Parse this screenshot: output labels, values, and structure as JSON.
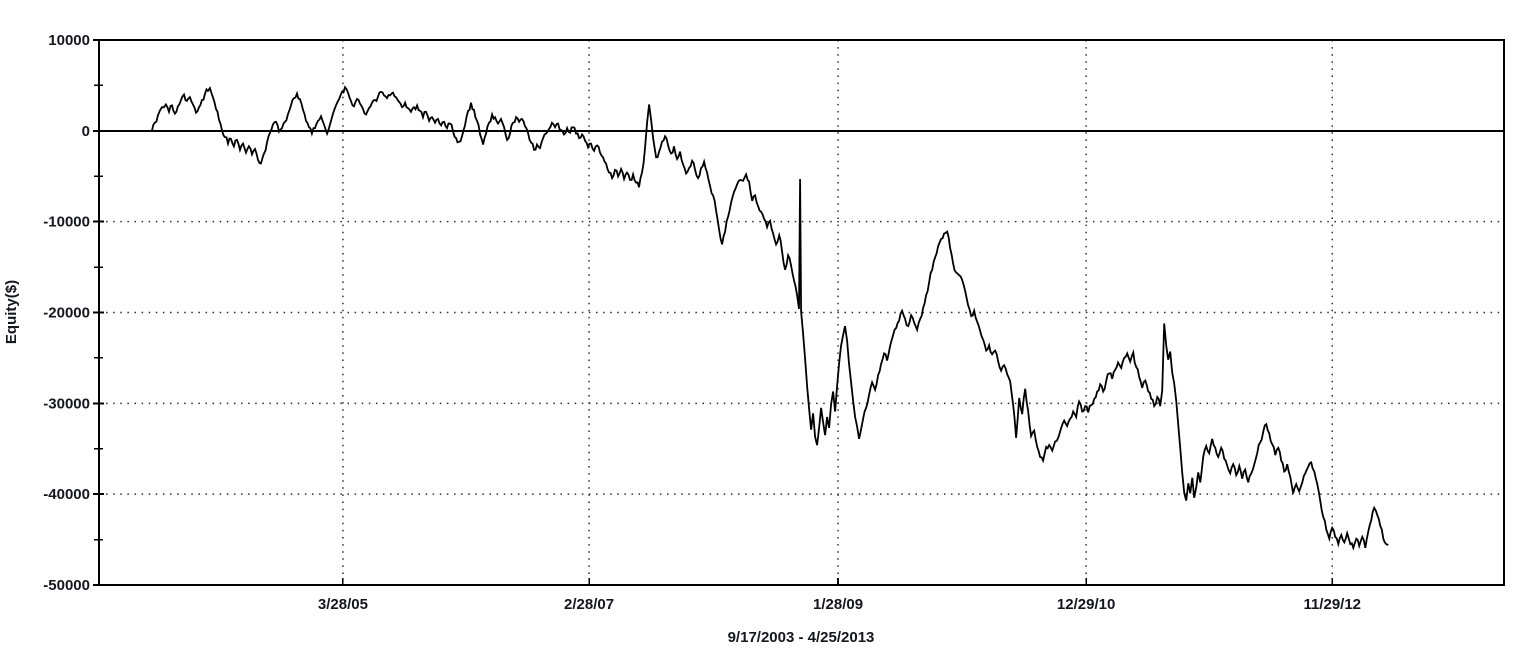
{
  "window": {
    "background": "#ffffff"
  },
  "chart_data": {
    "type": "line",
    "title": "",
    "ylabel": "Equity($)",
    "caption": "9/17/2003 - 4/25/2013",
    "x_axis": {
      "start_date": "9/17/2003",
      "end_date": "4/25/2013",
      "unit": "years_since_start",
      "xlim": [
        -0.41,
        10.47
      ],
      "ticks": [
        {
          "label": "3/28/05",
          "t": 1.479
        },
        {
          "label": "2/28/07",
          "t": 3.385
        },
        {
          "label": "1/28/09",
          "t": 5.313
        },
        {
          "label": "12/29/10",
          "t": 7.234
        },
        {
          "label": "11/29/12",
          "t": 9.14
        }
      ]
    },
    "y_axis": {
      "ylim": [
        -50000,
        10000
      ],
      "major_ticks": [
        {
          "label": "10000",
          "v": 10000
        },
        {
          "label": "0",
          "v": 0
        },
        {
          "label": "-10000",
          "v": -10000
        },
        {
          "label": "-20000",
          "v": -20000
        },
        {
          "label": "-30000",
          "v": -30000
        },
        {
          "label": "-40000",
          "v": -40000
        },
        {
          "label": "-50000",
          "v": -50000
        }
      ],
      "minor_ticks": [
        5000,
        -5000,
        -15000,
        -25000,
        -35000,
        -45000
      ]
    },
    "grid": {
      "h_lines": [
        -10000,
        -20000,
        -30000,
        -40000
      ],
      "v_lines_at_x_ticks": true,
      "style": "dotted"
    },
    "zero_line": 0,
    "style": {
      "line_color": "#000000",
      "grid_color": "#2e2e2e",
      "frame_color": "#000000",
      "text_color": "#16161e",
      "noise_amplitude_usd": 650,
      "noise_seed": 20130425
    },
    "series": [
      {
        "name": "equity-curve",
        "color": "#000000",
        "t": [
          0,
          0.023,
          0.046,
          0.077,
          0.108,
          0.132,
          0.155,
          0.178,
          0.201,
          0.225,
          0.248,
          0.271,
          0.294,
          0.318,
          0.341,
          0.364,
          0.387,
          0.411,
          0.434,
          0.449,
          0.472,
          0.496,
          0.519,
          0.542,
          0.565,
          0.589,
          0.612,
          0.635,
          0.658,
          0.682,
          0.705,
          0.728,
          0.751,
          0.775,
          0.798,
          0.821,
          0.844,
          0.868,
          0.891,
          0.914,
          0.937,
          0.961,
          0.984,
          1.007,
          1.03,
          1.053,
          1.077,
          1.1,
          1.123,
          1.146,
          1.17,
          1.193,
          1.216,
          1.239,
          1.263,
          1.286,
          1.309,
          1.332,
          1.356,
          1.379,
          1.402,
          1.425,
          1.449,
          1.472,
          1.495,
          1.518,
          1.541,
          1.565,
          1.588,
          1.611,
          1.634,
          1.658,
          1.681,
          1.704,
          1.727,
          1.751,
          1.774,
          1.797,
          1.82,
          1.844,
          1.867,
          1.89,
          1.913,
          1.937,
          1.96,
          1.983,
          2.006,
          2.029,
          2.053,
          2.076,
          2.099,
          2.122,
          2.146,
          2.169,
          2.192,
          2.215,
          2.239,
          2.262,
          2.285,
          2.308,
          2.332,
          2.355,
          2.378,
          2.401,
          2.424,
          2.448,
          2.471,
          2.494,
          2.517,
          2.541,
          2.564,
          2.587,
          2.61,
          2.634,
          2.657,
          2.68,
          2.703,
          2.727,
          2.75,
          2.773,
          2.796,
          2.82,
          2.843,
          2.866,
          2.889,
          2.912,
          2.936,
          2.959,
          2.982,
          3.005,
          3.029,
          3.052,
          3.075,
          3.098,
          3.122,
          3.145,
          3.168,
          3.191,
          3.215,
          3.238,
          3.261,
          3.284,
          3.308,
          3.331,
          3.354,
          3.377,
          3.4,
          3.424,
          3.447,
          3.47,
          3.493,
          3.517,
          3.54,
          3.563,
          3.586,
          3.61,
          3.633,
          3.656,
          3.679,
          3.702,
          3.726,
          3.749,
          3.772,
          3.795,
          3.819,
          3.834,
          3.85,
          3.865,
          3.881,
          3.904,
          3.927,
          3.95,
          3.974,
          3.997,
          4.02,
          4.043,
          4.067,
          4.09,
          4.113,
          4.136,
          4.159,
          4.183,
          4.206,
          4.229,
          4.252,
          4.276,
          4.299,
          4.322,
          4.345,
          4.369,
          4.392,
          4.415,
          4.438,
          4.462,
          4.485,
          4.508,
          4.531,
          4.555,
          4.578,
          4.601,
          4.624,
          4.648,
          4.671,
          4.694,
          4.717,
          4.74,
          4.764,
          4.787,
          4.81,
          4.833,
          4.857,
          4.88,
          4.903,
          4.926,
          4.95,
          4.973,
          4.996,
          5.011,
          5.019,
          5.027,
          5.042,
          5.058,
          5.073,
          5.089,
          5.104,
          5.12,
          5.135,
          5.151,
          5.166,
          5.182,
          5.197,
          5.213,
          5.228,
          5.244,
          5.259,
          5.275,
          5.29,
          5.306,
          5.321,
          5.336,
          5.352,
          5.367,
          5.383,
          5.398,
          5.414,
          5.429,
          5.445,
          5.46,
          5.476,
          5.491,
          5.507,
          5.53,
          5.553,
          5.577,
          5.6,
          5.623,
          5.646,
          5.67,
          5.693,
          5.716,
          5.739,
          5.763,
          5.786,
          5.809,
          5.832,
          5.856,
          5.879,
          5.902,
          5.925,
          5.949,
          5.972,
          5.995,
          6.018,
          6.042,
          6.065,
          6.088,
          6.111,
          6.134,
          6.158,
          6.181,
          6.204,
          6.227,
          6.251,
          6.274,
          6.297,
          6.32,
          6.344,
          6.367,
          6.39,
          6.413,
          6.437,
          6.46,
          6.483,
          6.506,
          6.53,
          6.553,
          6.576,
          6.599,
          6.623,
          6.646,
          6.669,
          6.692,
          6.716,
          6.739,
          6.762,
          6.785,
          6.808,
          6.832,
          6.855,
          6.878,
          6.901,
          6.925,
          6.948,
          6.971,
          6.994,
          7.018,
          7.041,
          7.064,
          7.087,
          7.111,
          7.134,
          7.157,
          7.18,
          7.204,
          7.227,
          7.25,
          7.273,
          7.297,
          7.32,
          7.343,
          7.366,
          7.39,
          7.413,
          7.436,
          7.459,
          7.482,
          7.506,
          7.529,
          7.552,
          7.575,
          7.599,
          7.622,
          7.645,
          7.668,
          7.692,
          7.715,
          7.738,
          7.761,
          7.785,
          7.808,
          7.823,
          7.839,
          7.854,
          7.87,
          7.885,
          7.901,
          7.916,
          7.932,
          7.947,
          7.963,
          7.978,
          7.994,
          8.009,
          8.025,
          8.04,
          8.056,
          8.071,
          8.087,
          8.102,
          8.118,
          8.141,
          8.164,
          8.187,
          8.21,
          8.234,
          8.257,
          8.28,
          8.303,
          8.327,
          8.35,
          8.373,
          8.396,
          8.42,
          8.443,
          8.466,
          8.489,
          8.513,
          8.536,
          8.559,
          8.582,
          8.606,
          8.629,
          8.652,
          8.675,
          8.699,
          8.722,
          8.745,
          8.768,
          8.791,
          8.815,
          8.838,
          8.861,
          8.884,
          8.908,
          8.931,
          8.954,
          8.977,
          9.001,
          9.024,
          9.047,
          9.07,
          9.094,
          9.117,
          9.14,
          9.163,
          9.187,
          9.21,
          9.233,
          9.256,
          9.28,
          9.303,
          9.326,
          9.349,
          9.373,
          9.396,
          9.419,
          9.442,
          9.465,
          9.489,
          9.512,
          9.535,
          9.558,
          9.574
        ],
        "equity": [
          0,
          900,
          1700,
          2600,
          2900,
          2100,
          2800,
          1900,
          2700,
          3400,
          4000,
          3300,
          3700,
          2900,
          2000,
          2600,
          3400,
          4100,
          4400,
          4700,
          3700,
          2400,
          1200,
          100,
          -700,
          -1400,
          -900,
          -1700,
          -1000,
          -2100,
          -1400,
          -2400,
          -1700,
          -2600,
          -2000,
          -3200,
          -3600,
          -2500,
          -1300,
          -200,
          700,
          1000,
          -100,
          300,
          1000,
          1800,
          2800,
          3600,
          4100,
          3500,
          2300,
          1100,
          400,
          -300,
          300,
          1100,
          1600,
          700,
          -300,
          700,
          1900,
          2800,
          3500,
          4300,
          4800,
          4200,
          3300,
          2700,
          3500,
          3000,
          2400,
          1800,
          2500,
          3100,
          3400,
          3800,
          4300,
          3900,
          3600,
          3900,
          4200,
          3700,
          3200,
          2600,
          3100,
          2500,
          2100,
          2600,
          2800,
          2200,
          1500,
          2100,
          1100,
          1500,
          900,
          1300,
          600,
          1000,
          300,
          800,
          -100,
          -800,
          -1200,
          -600,
          600,
          2200,
          3100,
          2300,
          1100,
          -400,
          -1500,
          -300,
          900,
          1800,
          1500,
          800,
          1300,
          400,
          -1000,
          -300,
          900,
          1500,
          1000,
          1300,
          500,
          -200,
          -1300,
          -2100,
          -1500,
          -1900,
          -800,
          -300,
          200,
          900,
          400,
          800,
          100,
          -400,
          300,
          -200,
          400,
          -300,
          -800,
          -400,
          -1100,
          -1800,
          -1400,
          -2200,
          -1600,
          -2400,
          -2900,
          -3600,
          -4600,
          -5200,
          -4300,
          -5000,
          -4200,
          -5300,
          -4600,
          -5400,
          -4800,
          -5700,
          -6200,
          -4600,
          -1800,
          900,
          2900,
          1200,
          -800,
          -2900,
          -2300,
          -1200,
          -600,
          -1600,
          -2500,
          -1700,
          -3100,
          -2300,
          -3700,
          -4700,
          -4100,
          -3300,
          -4300,
          -5200,
          -4100,
          -3400,
          -4600,
          -6100,
          -7100,
          -8800,
          -10900,
          -12500,
          -11100,
          -9400,
          -7900,
          -6700,
          -5900,
          -5400,
          -5500,
          -4800,
          -5600,
          -7700,
          -7100,
          -8300,
          -8900,
          -9700,
          -10600,
          -9900,
          -11300,
          -12500,
          -11500,
          -13300,
          -15300,
          -13700,
          -14900,
          -16500,
          -18100,
          -19600,
          -5300,
          -19900,
          -22200,
          -25100,
          -28100,
          -30600,
          -32900,
          -31100,
          -33700,
          -34600,
          -32700,
          -30500,
          -32100,
          -33500,
          -31500,
          -32700,
          -30100,
          -28700,
          -30900,
          -28100,
          -25600,
          -23700,
          -22500,
          -21500,
          -23100,
          -25600,
          -27700,
          -29600,
          -31500,
          -32500,
          -33900,
          -32900,
          -31700,
          -30500,
          -29100,
          -27700,
          -28500,
          -26900,
          -25700,
          -24500,
          -25300,
          -23700,
          -22500,
          -21700,
          -20900,
          -19800,
          -20700,
          -21500,
          -20300,
          -21100,
          -21900,
          -20700,
          -19500,
          -18100,
          -16700,
          -15300,
          -13900,
          -12700,
          -11900,
          -11300,
          -11100,
          -12900,
          -14600,
          -15600,
          -15900,
          -16400,
          -17600,
          -19200,
          -20400,
          -19800,
          -21000,
          -22000,
          -23000,
          -24200,
          -23600,
          -24600,
          -24200,
          -25400,
          -26400,
          -25800,
          -26800,
          -27600,
          -30200,
          -33800,
          -29400,
          -31200,
          -28400,
          -30800,
          -33600,
          -33000,
          -34800,
          -35900,
          -36300,
          -34800,
          -34600,
          -35200,
          -34200,
          -33800,
          -32700,
          -31900,
          -32500,
          -31700,
          -30900,
          -31500,
          -29800,
          -30900,
          -30300,
          -31000,
          -30200,
          -29500,
          -28700,
          -27900,
          -28700,
          -27500,
          -26700,
          -27300,
          -26300,
          -25500,
          -26100,
          -25000,
          -24500,
          -25400,
          -24400,
          -26000,
          -27100,
          -28300,
          -27500,
          -28700,
          -29500,
          -30300,
          -29300,
          -30300,
          -28600,
          -21200,
          -23600,
          -25200,
          -24300,
          -26600,
          -27800,
          -29800,
          -32300,
          -35000,
          -37600,
          -39900,
          -40700,
          -38800,
          -39900,
          -38200,
          -40400,
          -39200,
          -37600,
          -38700,
          -35900,
          -34700,
          -35500,
          -33900,
          -34900,
          -35900,
          -34900,
          -36100,
          -36900,
          -37700,
          -36700,
          -37900,
          -36900,
          -38300,
          -37300,
          -38700,
          -37700,
          -36700,
          -35500,
          -34300,
          -33100,
          -32300,
          -33300,
          -34500,
          -35700,
          -34900,
          -36300,
          -37500,
          -36700,
          -38100,
          -39900,
          -38900,
          -39700,
          -38700,
          -37700,
          -37000,
          -36500,
          -37500,
          -38900,
          -40700,
          -42500,
          -43900,
          -44900,
          -43700,
          -44700,
          -45500,
          -44500,
          -45300,
          -44300,
          -45500,
          -45900,
          -44900,
          -45700,
          -44700,
          -45900,
          -44100,
          -42900,
          -41500,
          -42300,
          -43500,
          -44900,
          -45500,
          -45600
        ]
      }
    ]
  }
}
